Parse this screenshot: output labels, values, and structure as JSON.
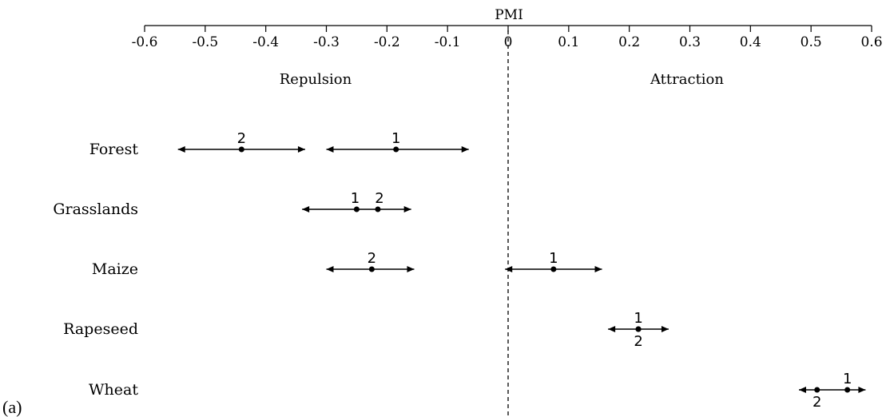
{
  "panel_label": "(a)",
  "chart_data": {
    "type": "interval",
    "xlabel": "PMI",
    "xlim": [
      -0.6,
      0.6
    ],
    "xticks": [
      -0.6,
      -0.5,
      -0.4,
      -0.3,
      -0.2,
      -0.1,
      0,
      0.1,
      0.2,
      0.3,
      0.4,
      0.5,
      0.6
    ],
    "xtick_labels": [
      "-0.6",
      "-0.5",
      "-0.4",
      "-0.3",
      "-0.2",
      "-0.1",
      "0",
      "0.1",
      "0.2",
      "0.3",
      "0.4",
      "0.5",
      "0.6"
    ],
    "side_labels": {
      "left": "Repulsion",
      "right": "Attraction"
    },
    "reference_line": {
      "x": 0,
      "style": "dashed"
    },
    "rows": [
      {
        "name": "Forest",
        "intervals": [
          {
            "low": -0.545,
            "high": -0.335,
            "points": [
              {
                "x": -0.44,
                "label": "2",
                "label_pos": "above"
              }
            ]
          },
          {
            "low": -0.3,
            "high": -0.065,
            "points": [
              {
                "x": -0.185,
                "label": "1",
                "label_pos": "above"
              }
            ]
          }
        ]
      },
      {
        "name": "Grasslands",
        "intervals": [
          {
            "low": -0.34,
            "high": -0.16,
            "points": [
              {
                "x": -0.25,
                "label": "1",
                "label_pos": "above"
              },
              {
                "x": -0.215,
                "label": "2",
                "label_pos": "above"
              }
            ]
          }
        ]
      },
      {
        "name": "Maize",
        "intervals": [
          {
            "low": -0.3,
            "high": -0.155,
            "points": [
              {
                "x": -0.225,
                "label": "2",
                "label_pos": "above"
              }
            ]
          },
          {
            "low": -0.005,
            "high": 0.155,
            "points": [
              {
                "x": 0.075,
                "label": "1",
                "label_pos": "above"
              }
            ]
          }
        ]
      },
      {
        "name": "Rapeseed",
        "intervals": [
          {
            "low": 0.165,
            "high": 0.265,
            "points": [
              {
                "x": 0.215,
                "label": "1",
                "label_pos": "above"
              },
              {
                "x": 0.215,
                "label": "2",
                "label_pos": "below"
              }
            ]
          }
        ]
      },
      {
        "name": "Wheat",
        "intervals": [
          {
            "low": 0.48,
            "high": 0.59,
            "points": [
              {
                "x": 0.56,
                "label": "1",
                "label_pos": "above"
              },
              {
                "x": 0.51,
                "label": "2",
                "label_pos": "below"
              }
            ]
          }
        ]
      }
    ]
  }
}
